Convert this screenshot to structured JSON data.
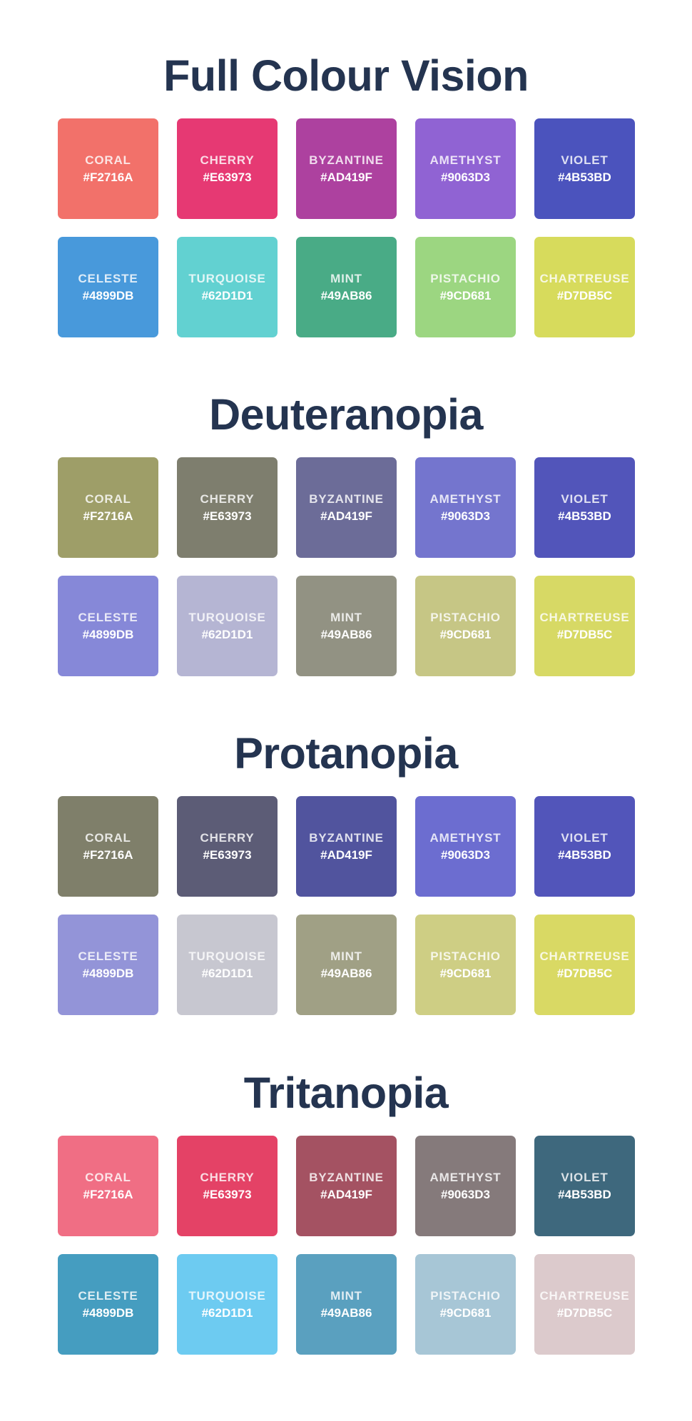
{
  "sections": [
    {
      "title": "Full Colour Vision",
      "swatches": [
        {
          "name": "CORAL",
          "hex": "#F2716A",
          "display": "#F2716A"
        },
        {
          "name": "CHERRY",
          "hex": "#E63973",
          "display": "#E63973"
        },
        {
          "name": "BYZANTINE",
          "hex": "#AD419F",
          "display": "#AD419F"
        },
        {
          "name": "AMETHYST",
          "hex": "#9063D3",
          "display": "#9063D3"
        },
        {
          "name": "VIOLET",
          "hex": "#4B53BD",
          "display": "#4B53BD"
        },
        {
          "name": "CELESTE",
          "hex": "#4899DB",
          "display": "#4899DB"
        },
        {
          "name": "TURQUOISE",
          "hex": "#62D1D1",
          "display": "#62D1D1"
        },
        {
          "name": "MINT",
          "hex": "#49AB86",
          "display": "#49AB86"
        },
        {
          "name": "PISTACHIO",
          "hex": "#9CD681",
          "display": "#9CD681"
        },
        {
          "name": "CHARTREUSE",
          "hex": "#D7DB5C",
          "display": "#D7DB5C"
        }
      ]
    },
    {
      "title": "Deuteranopia",
      "swatches": [
        {
          "name": "CORAL",
          "hex": "#F2716A",
          "display": "#9E9E68"
        },
        {
          "name": "CHERRY",
          "hex": "#E63973",
          "display": "#7E7E6E"
        },
        {
          "name": "BYZANTINE",
          "hex": "#AD419F",
          "display": "#6C6C98"
        },
        {
          "name": "AMETHYST",
          "hex": "#9063D3",
          "display": "#7475CE"
        },
        {
          "name": "VIOLET",
          "hex": "#4B53BD",
          "display": "#5255BA"
        },
        {
          "name": "CELESTE",
          "hex": "#4899DB",
          "display": "#8688D8"
        },
        {
          "name": "TURQUOISE",
          "hex": "#62D1D1",
          "display": "#B5B5D3"
        },
        {
          "name": "MINT",
          "hex": "#49AB86",
          "display": "#929283"
        },
        {
          "name": "PISTACHIO",
          "hex": "#9CD681",
          "display": "#C6C685"
        },
        {
          "name": "CHARTREUSE",
          "hex": "#D7DB5C",
          "display": "#D7D965"
        }
      ]
    },
    {
      "title": "Protanopia",
      "swatches": [
        {
          "name": "CORAL",
          "hex": "#F2716A",
          "display": "#7F7F6A"
        },
        {
          "name": "CHERRY",
          "hex": "#E63973",
          "display": "#5C5C76"
        },
        {
          "name": "BYZANTINE",
          "hex": "#AD419F",
          "display": "#51549E"
        },
        {
          "name": "AMETHYST",
          "hex": "#9063D3",
          "display": "#6C6DD0"
        },
        {
          "name": "VIOLET",
          "hex": "#4B53BD",
          "display": "#5255BA"
        },
        {
          "name": "CELESTE",
          "hex": "#4899DB",
          "display": "#9394D8"
        },
        {
          "name": "TURQUOISE",
          "hex": "#62D1D1",
          "display": "#C7C7D0"
        },
        {
          "name": "MINT",
          "hex": "#49AB86",
          "display": "#A0A085"
        },
        {
          "name": "PISTACHIO",
          "hex": "#9CD681",
          "display": "#CECE84"
        },
        {
          "name": "CHARTREUSE",
          "hex": "#D7DB5C",
          "display": "#D9D964"
        }
      ]
    },
    {
      "title": "Tritanopia",
      "swatches": [
        {
          "name": "CORAL",
          "hex": "#F2716A",
          "display": "#F06E84"
        },
        {
          "name": "CHERRY",
          "hex": "#E63973",
          "display": "#E44266"
        },
        {
          "name": "BYZANTINE",
          "hex": "#AD419F",
          "display": "#A45262"
        },
        {
          "name": "AMETHYST",
          "hex": "#9063D3",
          "display": "#857A7B"
        },
        {
          "name": "VIOLET",
          "hex": "#4B53BD",
          "display": "#3E687D"
        },
        {
          "name": "CELESTE",
          "hex": "#4899DB",
          "display": "#459DC0"
        },
        {
          "name": "TURQUOISE",
          "hex": "#62D1D1",
          "display": "#6DCBF1"
        },
        {
          "name": "MINT",
          "hex": "#49AB86",
          "display": "#5AA0BF"
        },
        {
          "name": "PISTACHIO",
          "hex": "#9CD681",
          "display": "#A7C6D6"
        },
        {
          "name": "CHARTREUSE",
          "hex": "#D7DB5C",
          "display": "#DCCACC"
        }
      ]
    }
  ]
}
